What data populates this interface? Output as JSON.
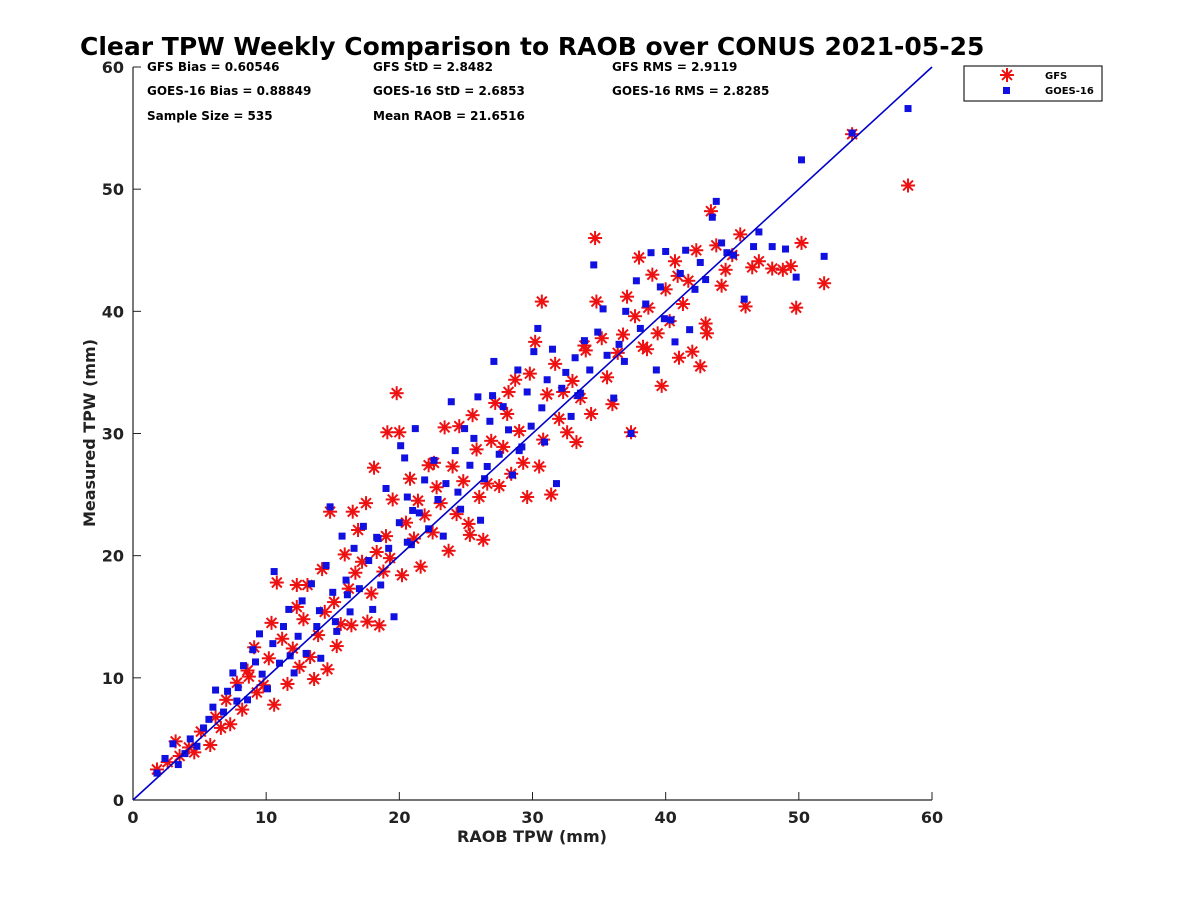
{
  "chart_data": {
    "type": "scatter",
    "title": "Clear TPW Weekly Comparison to RAOB over CONUS 2021-05-25",
    "xlabel": "RAOB TPW (mm)",
    "ylabel": "Measured TPW (mm)",
    "xlim": [
      0,
      60
    ],
    "ylim": [
      0,
      60
    ],
    "xticks": [
      "0",
      "10",
      "20",
      "30",
      "40",
      "50",
      "60"
    ],
    "yticks": [
      "0",
      "10",
      "20",
      "30",
      "40",
      "50",
      "60"
    ],
    "grid": false,
    "legend_position": "top-right, outside plot",
    "reference_line": {
      "x": [
        0,
        60
      ],
      "y": [
        0,
        60
      ],
      "color": "#0000cc"
    },
    "stats": {
      "gfs_bias": "GFS Bias = 0.60546",
      "goes_bias": "GOES-16 Bias = 0.88849",
      "sample_size": "Sample Size = 535",
      "gfs_std": "GFS StD = 2.8482",
      "goes_std": "GOES-16 StD = 2.6853",
      "mean_raob": "Mean RAOB = 21.6516",
      "gfs_rms": "GFS RMS = 2.9119",
      "goes_rms": "GOES-16 RMS = 2.8285"
    },
    "series": [
      {
        "name": "GFS",
        "marker": "asterisk",
        "color": "#ee1111",
        "points": [
          [
            1.8,
            2.5
          ],
          [
            2.6,
            3.1
          ],
          [
            3.2,
            4.8
          ],
          [
            3.5,
            3.6
          ],
          [
            4.2,
            4.3
          ],
          [
            4.6,
            3.9
          ],
          [
            5.1,
            5.6
          ],
          [
            5.8,
            4.5
          ],
          [
            6.2,
            6.8
          ],
          [
            6.6,
            5.9
          ],
          [
            7.0,
            8.2
          ],
          [
            7.3,
            6.2
          ],
          [
            7.8,
            9.6
          ],
          [
            8.2,
            7.4
          ],
          [
            8.6,
            10.6
          ],
          [
            9.1,
            12.5
          ],
          [
            9.3,
            8.8
          ],
          [
            9.8,
            9.4
          ],
          [
            10.2,
            11.6
          ],
          [
            10.4,
            14.5
          ],
          [
            10.6,
            7.8
          ],
          [
            10.8,
            17.8
          ],
          [
            11.2,
            13.2
          ],
          [
            11.6,
            9.5
          ],
          [
            12.0,
            12.4
          ],
          [
            12.3,
            15.8
          ],
          [
            12.5,
            10.9
          ],
          [
            12.8,
            14.8
          ],
          [
            13.1,
            17.6
          ],
          [
            13.3,
            11.7
          ],
          [
            13.6,
            9.9
          ],
          [
            13.9,
            13.5
          ],
          [
            14.2,
            18.9
          ],
          [
            14.4,
            15.4
          ],
          [
            14.6,
            10.7
          ],
          [
            14.8,
            23.6
          ],
          [
            15.1,
            16.2
          ],
          [
            15.3,
            12.6
          ],
          [
            15.6,
            14.4
          ],
          [
            15.9,
            20.1
          ],
          [
            16.2,
            17.3
          ],
          [
            16.4,
            14.3
          ],
          [
            16.7,
            18.6
          ],
          [
            16.9,
            22.1
          ],
          [
            17.2,
            19.5
          ],
          [
            17.5,
            24.3
          ],
          [
            17.6,
            14.6
          ],
          [
            17.9,
            16.9
          ],
          [
            18.1,
            27.2
          ],
          [
            18.3,
            20.3
          ],
          [
            18.5,
            14.3
          ],
          [
            18.8,
            18.7
          ],
          [
            19.0,
            21.6
          ],
          [
            19.3,
            19.8
          ],
          [
            19.5,
            24.6
          ],
          [
            19.8,
            33.3
          ],
          [
            20.0,
            30.1
          ],
          [
            20.2,
            18.4
          ],
          [
            20.5,
            22.7
          ],
          [
            20.8,
            26.3
          ],
          [
            21.1,
            21.4
          ],
          [
            21.4,
            24.5
          ],
          [
            21.6,
            19.1
          ],
          [
            21.9,
            23.3
          ],
          [
            22.2,
            27.4
          ],
          [
            22.5,
            21.9
          ],
          [
            22.8,
            25.6
          ],
          [
            23.1,
            24.3
          ],
          [
            23.4,
            30.5
          ],
          [
            23.7,
            20.4
          ],
          [
            24.0,
            27.3
          ],
          [
            24.3,
            23.4
          ],
          [
            24.5,
            30.6
          ],
          [
            24.8,
            26.1
          ],
          [
            25.2,
            22.6
          ],
          [
            25.5,
            31.5
          ],
          [
            25.8,
            28.7
          ],
          [
            26.0,
            24.8
          ],
          [
            26.3,
            21.3
          ],
          [
            26.6,
            25.9
          ],
          [
            26.9,
            29.4
          ],
          [
            27.2,
            32.5
          ],
          [
            27.5,
            25.7
          ],
          [
            27.8,
            28.9
          ],
          [
            28.1,
            31.6
          ],
          [
            28.4,
            26.7
          ],
          [
            28.7,
            34.4
          ],
          [
            29.0,
            30.2
          ],
          [
            29.3,
            27.6
          ],
          [
            29.6,
            24.8
          ],
          [
            29.8,
            34.9
          ],
          [
            30.2,
            37.5
          ],
          [
            30.5,
            27.3
          ],
          [
            30.8,
            29.5
          ],
          [
            31.1,
            33.2
          ],
          [
            31.4,
            25.0
          ],
          [
            31.7,
            35.7
          ],
          [
            32.0,
            31.2
          ],
          [
            32.3,
            33.4
          ],
          [
            32.6,
            30.1
          ],
          [
            33.0,
            34.3
          ],
          [
            33.3,
            29.3
          ],
          [
            33.6,
            32.9
          ],
          [
            34.0,
            36.8
          ],
          [
            34.4,
            31.6
          ],
          [
            34.7,
            46.0
          ],
          [
            34.8,
            40.8
          ],
          [
            35.2,
            37.8
          ],
          [
            35.6,
            34.6
          ],
          [
            36.0,
            32.4
          ],
          [
            36.4,
            36.6
          ],
          [
            36.8,
            38.1
          ],
          [
            37.1,
            41.2
          ],
          [
            37.4,
            30.1
          ],
          [
            37.7,
            39.6
          ],
          [
            38.0,
            44.4
          ],
          [
            38.3,
            37.1
          ],
          [
            38.7,
            40.3
          ],
          [
            39.0,
            43.0
          ],
          [
            39.4,
            38.2
          ],
          [
            39.7,
            33.9
          ],
          [
            40.0,
            41.8
          ],
          [
            40.3,
            39.2
          ],
          [
            40.7,
            44.1
          ],
          [
            41.0,
            36.2
          ],
          [
            41.3,
            40.6
          ],
          [
            41.7,
            42.5
          ],
          [
            42.0,
            36.7
          ],
          [
            42.3,
            45.0
          ],
          [
            42.6,
            35.5
          ],
          [
            43.0,
            39.0
          ],
          [
            43.4,
            48.2
          ],
          [
            43.8,
            45.4
          ],
          [
            44.2,
            42.1
          ],
          [
            44.5,
            43.4
          ],
          [
            45.0,
            44.6
          ],
          [
            45.6,
            46.3
          ],
          [
            46.0,
            40.4
          ],
          [
            46.5,
            43.6
          ],
          [
            47.0,
            44.1
          ],
          [
            48.0,
            43.5
          ],
          [
            48.8,
            43.4
          ],
          [
            49.4,
            43.7
          ],
          [
            49.8,
            40.3
          ],
          [
            50.2,
            45.6
          ],
          [
            51.9,
            42.3
          ],
          [
            54.0,
            54.5
          ],
          [
            58.2,
            50.3
          ],
          [
            30.7,
            40.8
          ],
          [
            22.6,
            27.6
          ],
          [
            19.1,
            30.1
          ],
          [
            16.5,
            23.6
          ],
          [
            12.3,
            17.6
          ],
          [
            8.7,
            10.1
          ],
          [
            25.3,
            21.7
          ],
          [
            28.2,
            33.4
          ],
          [
            33.9,
            37.2
          ],
          [
            38.6,
            36.9
          ],
          [
            43.1,
            38.2
          ],
          [
            40.9,
            42.9
          ]
        ]
      },
      {
        "name": "GOES-16",
        "marker": "square",
        "color": "#1010e0",
        "points": [
          [
            1.8,
            2.2
          ],
          [
            2.4,
            3.4
          ],
          [
            3.0,
            4.6
          ],
          [
            3.4,
            2.9
          ],
          [
            3.9,
            3.8
          ],
          [
            4.3,
            5.0
          ],
          [
            4.8,
            4.4
          ],
          [
            5.3,
            5.9
          ],
          [
            5.7,
            6.6
          ],
          [
            6.0,
            7.6
          ],
          [
            6.2,
            9.0
          ],
          [
            6.8,
            7.2
          ],
          [
            7.1,
            8.9
          ],
          [
            7.5,
            10.4
          ],
          [
            7.9,
            9.2
          ],
          [
            8.3,
            11.0
          ],
          [
            8.6,
            8.2
          ],
          [
            9.0,
            12.3
          ],
          [
            9.5,
            13.6
          ],
          [
            9.7,
            10.3
          ],
          [
            10.1,
            9.1
          ],
          [
            10.5,
            12.8
          ],
          [
            10.6,
            18.7
          ],
          [
            11.0,
            11.2
          ],
          [
            11.3,
            14.2
          ],
          [
            11.7,
            15.6
          ],
          [
            12.1,
            10.4
          ],
          [
            12.4,
            13.4
          ],
          [
            12.7,
            16.3
          ],
          [
            13.0,
            12.0
          ],
          [
            13.4,
            17.7
          ],
          [
            13.8,
            14.2
          ],
          [
            14.1,
            11.6
          ],
          [
            14.5,
            19.2
          ],
          [
            14.8,
            24.0
          ],
          [
            15.0,
            17.0
          ],
          [
            15.3,
            13.8
          ],
          [
            15.7,
            21.6
          ],
          [
            16.0,
            18.0
          ],
          [
            16.3,
            15.4
          ],
          [
            16.6,
            20.6
          ],
          [
            17.0,
            17.3
          ],
          [
            17.3,
            22.4
          ],
          [
            17.7,
            19.6
          ],
          [
            18.0,
            15.6
          ],
          [
            18.3,
            21.5
          ],
          [
            18.6,
            17.6
          ],
          [
            19.0,
            25.5
          ],
          [
            19.2,
            20.6
          ],
          [
            19.6,
            15.0
          ],
          [
            20.0,
            22.7
          ],
          [
            20.1,
            29.0
          ],
          [
            20.4,
            28.0
          ],
          [
            20.6,
            24.8
          ],
          [
            20.9,
            20.9
          ],
          [
            21.2,
            30.4
          ],
          [
            21.5,
            23.5
          ],
          [
            21.9,
            26.2
          ],
          [
            22.2,
            22.2
          ],
          [
            22.6,
            27.8
          ],
          [
            22.9,
            24.6
          ],
          [
            23.3,
            21.6
          ],
          [
            23.5,
            25.9
          ],
          [
            23.9,
            32.6
          ],
          [
            24.2,
            28.6
          ],
          [
            24.6,
            23.8
          ],
          [
            24.9,
            30.4
          ],
          [
            25.3,
            27.4
          ],
          [
            25.6,
            29.6
          ],
          [
            25.9,
            33.0
          ],
          [
            26.1,
            22.9
          ],
          [
            26.4,
            26.3
          ],
          [
            26.8,
            31.0
          ],
          [
            27.1,
            35.9
          ],
          [
            27.5,
            28.3
          ],
          [
            27.8,
            32.2
          ],
          [
            28.2,
            30.3
          ],
          [
            28.5,
            26.6
          ],
          [
            28.9,
            35.2
          ],
          [
            29.2,
            28.9
          ],
          [
            29.6,
            33.4
          ],
          [
            29.9,
            30.6
          ],
          [
            30.1,
            36.7
          ],
          [
            30.4,
            38.6
          ],
          [
            30.7,
            32.1
          ],
          [
            31.1,
            34.4
          ],
          [
            31.5,
            36.9
          ],
          [
            31.8,
            25.9
          ],
          [
            32.2,
            33.7
          ],
          [
            32.5,
            35.0
          ],
          [
            32.9,
            31.4
          ],
          [
            33.2,
            36.2
          ],
          [
            33.6,
            33.3
          ],
          [
            33.9,
            37.6
          ],
          [
            34.3,
            35.2
          ],
          [
            34.6,
            43.8
          ],
          [
            34.9,
            38.3
          ],
          [
            35.3,
            40.2
          ],
          [
            35.6,
            36.4
          ],
          [
            36.1,
            32.9
          ],
          [
            36.5,
            37.3
          ],
          [
            37.0,
            40.0
          ],
          [
            37.4,
            30.0
          ],
          [
            37.8,
            42.5
          ],
          [
            38.1,
            38.6
          ],
          [
            38.5,
            40.6
          ],
          [
            38.9,
            44.8
          ],
          [
            39.3,
            35.2
          ],
          [
            39.6,
            42.0
          ],
          [
            40.0,
            44.9
          ],
          [
            40.4,
            39.3
          ],
          [
            40.7,
            37.5
          ],
          [
            41.1,
            43.1
          ],
          [
            41.5,
            45.0
          ],
          [
            41.8,
            38.5
          ],
          [
            42.2,
            41.8
          ],
          [
            42.6,
            44.0
          ],
          [
            43.0,
            42.6
          ],
          [
            43.5,
            47.7
          ],
          [
            43.8,
            49.0
          ],
          [
            44.2,
            45.6
          ],
          [
            44.6,
            44.8
          ],
          [
            45.1,
            44.6
          ],
          [
            45.9,
            41.0
          ],
          [
            46.6,
            45.3
          ],
          [
            47.0,
            46.5
          ],
          [
            48.0,
            45.3
          ],
          [
            49.0,
            45.1
          ],
          [
            49.8,
            42.8
          ],
          [
            50.2,
            52.4
          ],
          [
            51.9,
            44.5
          ],
          [
            54.0,
            54.6
          ],
          [
            58.2,
            56.6
          ],
          [
            27.0,
            33.1
          ],
          [
            21.0,
            23.7
          ],
          [
            18.4,
            21.4
          ],
          [
            14.0,
            15.5
          ],
          [
            9.2,
            11.3
          ],
          [
            30.9,
            29.3
          ],
          [
            36.9,
            35.9
          ],
          [
            11.8,
            11.8
          ],
          [
            16.1,
            16.8
          ],
          [
            24.4,
            25.2
          ],
          [
            29.0,
            28.6
          ],
          [
            33.4,
            33.1
          ],
          [
            39.9,
            39.4
          ],
          [
            15.2,
            14.6
          ],
          [
            20.6,
            21.1
          ],
          [
            26.6,
            27.3
          ],
          [
            7.8,
            8.1
          ]
        ]
      }
    ]
  }
}
